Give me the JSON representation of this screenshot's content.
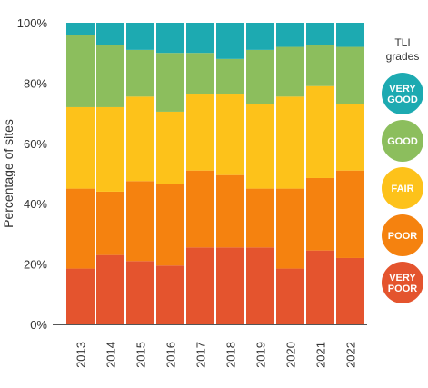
{
  "chart_data": {
    "type": "bar",
    "stacked": true,
    "percent": true,
    "categories": [
      "2013",
      "2014",
      "2015",
      "2016",
      "2017",
      "2018",
      "2019",
      "2020",
      "2021",
      "2022"
    ],
    "series": [
      {
        "name": "VERY POOR",
        "color": "#e4542e",
        "values": [
          18.5,
          23,
          21,
          19.5,
          25.5,
          25.5,
          25.5,
          18.5,
          24.5,
          22
        ]
      },
      {
        "name": "POOR",
        "color": "#f5820f",
        "values": [
          26.5,
          21,
          26.5,
          27,
          25.5,
          24,
          19.5,
          26.5,
          24,
          29
        ]
      },
      {
        "name": "FAIR",
        "color": "#fdc21a",
        "values": [
          27,
          28,
          28,
          24,
          25.5,
          27,
          28,
          30.5,
          30.5,
          22
        ]
      },
      {
        "name": "GOOD",
        "color": "#8cbe5d",
        "values": [
          24,
          20.5,
          15.5,
          19.5,
          13.5,
          11.5,
          18,
          16.5,
          13.5,
          19
        ]
      },
      {
        "name": "VERY GOOD",
        "color": "#1daab1",
        "values": [
          4,
          7.5,
          9,
          10,
          10,
          12,
          9,
          8,
          7.5,
          8
        ]
      }
    ],
    "ylabel": "Percentage of sites",
    "ylim": [
      0,
      100
    ],
    "yticks": [
      0,
      20,
      40,
      60,
      80,
      100
    ],
    "ytick_labels": [
      "0%",
      "20%",
      "40%",
      "60%",
      "80%",
      "100%"
    ],
    "grid": false,
    "legend": {
      "position": "right",
      "title_lines": [
        "TLI",
        "grades"
      ],
      "entries": [
        {
          "lines": [
            "VERY",
            "GOOD"
          ],
          "color": "#1daab1"
        },
        {
          "lines": [
            "GOOD"
          ],
          "color": "#8cbe5d"
        },
        {
          "lines": [
            "FAIR"
          ],
          "color": "#fdc21a"
        },
        {
          "lines": [
            "POOR"
          ],
          "color": "#f5820f"
        },
        {
          "lines": [
            "VERY",
            "POOR"
          ],
          "color": "#e4542e"
        }
      ]
    }
  }
}
